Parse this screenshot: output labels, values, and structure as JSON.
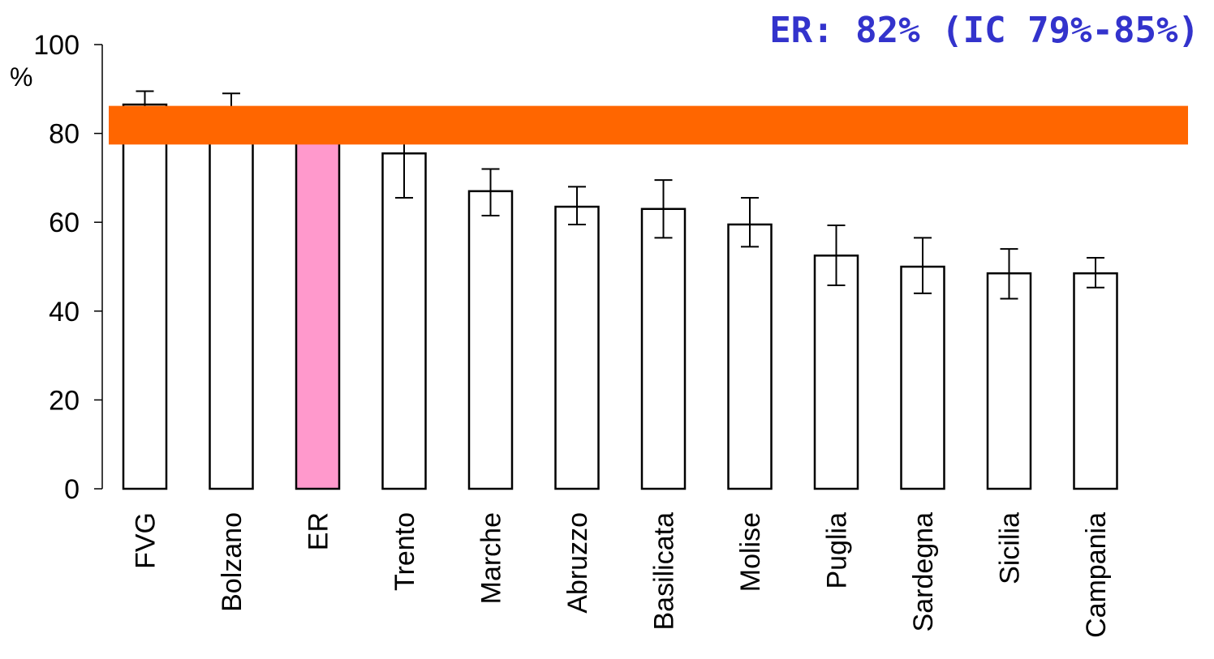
{
  "chart_data": {
    "type": "bar",
    "title": "ER: 82% (IC 79%-85%)",
    "ylabel": "%",
    "xlabel": "",
    "ylim": [
      0,
      100
    ],
    "yticks": [
      0,
      20,
      40,
      60,
      80,
      100
    ],
    "grid": false,
    "categories": [
      "FVG",
      "Bolzano",
      "ER",
      "Trento",
      "Marche",
      "Abruzzo",
      "Basilicata",
      "Molise",
      "Puglia",
      "Sardegna",
      "Sicilia",
      "Campania"
    ],
    "values": [
      86.5,
      84,
      82,
      75.5,
      67,
      63.5,
      63,
      59.5,
      52.5,
      50,
      48.5,
      48.5
    ],
    "error_low": [
      79,
      78,
      79,
      65.5,
      61.5,
      59.5,
      56.5,
      54.5,
      45.8,
      44,
      42.8,
      45.3
    ],
    "error_high": [
      89.5,
      89,
      85,
      78,
      72,
      68,
      69.5,
      65.5,
      59.3,
      56.5,
      54,
      52
    ],
    "highlight_category": "ER",
    "reference_band": {
      "low": 77.5,
      "high": 86.2
    },
    "colors": {
      "bar_fill": "#ffffff",
      "bar_stroke": "#000000",
      "highlight_fill": "#ff99cc",
      "band": "#ff6600",
      "title": "#3333cc"
    }
  }
}
